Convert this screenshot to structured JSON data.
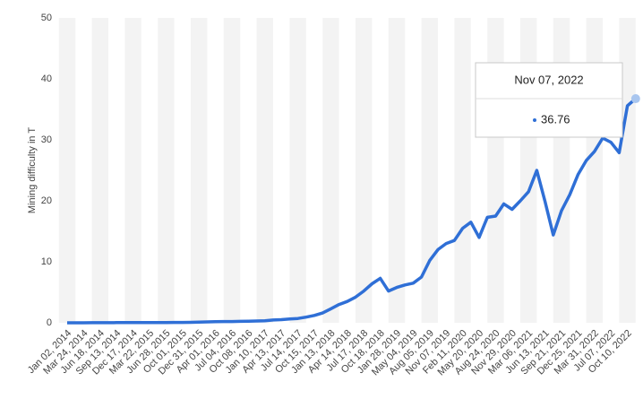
{
  "chart_data": {
    "type": "line",
    "y_label": "Mining difficulty in T",
    "categories": [
      "Jan 02, 2014",
      null,
      "Mar 24, 2014",
      null,
      "Jun 18, 2014",
      null,
      "Sep 13, 2014",
      null,
      "Dec 17, 2014",
      null,
      "Mar 22, 2015",
      null,
      "Jun 28, 2015",
      null,
      "Oct 01, 2015",
      null,
      "Dec 31, 2015",
      null,
      "Apr 01, 2016",
      null,
      "Jul 04, 2016",
      null,
      "Oct 08, 2016",
      null,
      "Jan 10, 2017",
      null,
      "Apr 13, 2017",
      null,
      "Jul 14, 2017",
      null,
      "Oct 15, 2017",
      null,
      "Jan 13, 2018",
      null,
      "Apr 14, 2018",
      null,
      "Jul 17, 2018",
      null,
      "Oct 18, 2018",
      null,
      "Jan 28, 2019",
      null,
      "May 04, 2019",
      null,
      "Aug 05, 2019",
      null,
      "Nov 07, 2019",
      null,
      "Feb 11, 2020",
      null,
      "May 20, 2020",
      null,
      "Aug 24, 2020",
      null,
      "Nov 29, 2020",
      null,
      "Mar 06, 2021",
      null,
      "Jun 13, 2021",
      null,
      "Sep 21, 2021",
      null,
      "Dec 25, 2021",
      null,
      "Mar 31, 2022",
      null,
      "Jul 07, 2022",
      null,
      "Oct 10, 2022",
      null
    ],
    "values": [
      0.002,
      0.005,
      0.006,
      0.01,
      0.013,
      0.02,
      0.027,
      0.035,
      0.04,
      0.043,
      0.046,
      0.047,
      0.05,
      0.055,
      0.06,
      0.08,
      0.11,
      0.15,
      0.17,
      0.2,
      0.21,
      0.23,
      0.25,
      0.29,
      0.33,
      0.45,
      0.52,
      0.62,
      0.71,
      0.92,
      1.2,
      1.6,
      2.3,
      3.0,
      3.5,
      4.2,
      5.2,
      6.4,
      7.3,
      5.2,
      5.8,
      6.2,
      6.5,
      7.5,
      10.2,
      12,
      13,
      13.5,
      15.5,
      16.5,
      14,
      17.3,
      17.5,
      19.5,
      18.6,
      20,
      21.5,
      25,
      19.9,
      14.4,
      18.4,
      21,
      24.3,
      26.6,
      28.1,
      30.3,
      29.6,
      27.9,
      35.6,
      36.76
    ],
    "color": "#2f6fd6",
    "ylim": [
      0,
      50
    ],
    "yticks": [
      0,
      10,
      20,
      30,
      40,
      50
    ],
    "tooltip": {
      "title": "Nov 07, 2022"
    }
  }
}
